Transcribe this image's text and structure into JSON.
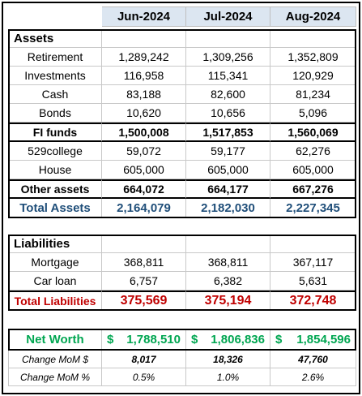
{
  "headers": [
    "Jun-2024",
    "Jul-2024",
    "Aug-2024"
  ],
  "assets": {
    "title": "Assets",
    "rows": [
      {
        "label": "Retirement",
        "values": [
          "1,289,242",
          "1,309,256",
          "1,352,809"
        ]
      },
      {
        "label": "Investments",
        "values": [
          "116,958",
          "115,341",
          "120,929"
        ]
      },
      {
        "label": "Cash",
        "values": [
          "83,188",
          "82,600",
          "81,234"
        ]
      },
      {
        "label": "Bonds",
        "values": [
          "10,620",
          "10,656",
          "5,096"
        ]
      }
    ],
    "fi_funds": {
      "label": "FI funds",
      "values": [
        "1,500,008",
        "1,517,853",
        "1,560,069"
      ]
    },
    "other_rows": [
      {
        "label": "529college",
        "values": [
          "59,072",
          "59,177",
          "62,276"
        ]
      },
      {
        "label": "House",
        "values": [
          "605,000",
          "605,000",
          "605,000"
        ]
      }
    ],
    "other_assets": {
      "label": "Other assets",
      "values": [
        "664,072",
        "664,177",
        "667,276"
      ]
    },
    "total": {
      "label": "Total Assets",
      "values": [
        "2,164,079",
        "2,182,030",
        "2,227,345"
      ]
    }
  },
  "liabilities": {
    "title": "Liabilities",
    "rows": [
      {
        "label": "Mortgage",
        "values": [
          "368,811",
          "368,811",
          "367,117"
        ]
      },
      {
        "label": "Car loan",
        "values": [
          "6,757",
          "6,382",
          "5,631"
        ]
      }
    ],
    "total": {
      "label": "Total Liabilities",
      "values": [
        "375,569",
        "375,194",
        "372,748"
      ]
    }
  },
  "net_worth": {
    "label": "Net Worth",
    "currency": "$",
    "values": [
      "1,788,510",
      "1,806,836",
      "1,854,596"
    ]
  },
  "change_dollar": {
    "label": "Change MoM $",
    "values": [
      "8,017",
      "18,326",
      "47,760"
    ]
  },
  "change_pct": {
    "label": "Change MoM %",
    "values": [
      "0.5%",
      "1.0%",
      "2.6%"
    ]
  },
  "colors": {
    "header_bg": "#dce6f1",
    "total_assets": "#1f4e79",
    "total_liabilities": "#c00000",
    "net_worth": "#00a651"
  }
}
